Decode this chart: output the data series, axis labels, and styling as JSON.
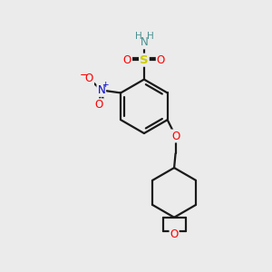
{
  "bg_color": "#ebebeb",
  "line_color": "#1a1a1a",
  "bond_width": 1.6,
  "atom_colors": {
    "S": "#cccc00",
    "O": "#ff0000",
    "N_nitro": "#0000cc",
    "N_amine": "#4a9090",
    "H": "#4a9090",
    "C": "#1a1a1a"
  },
  "font_size": 8.5
}
